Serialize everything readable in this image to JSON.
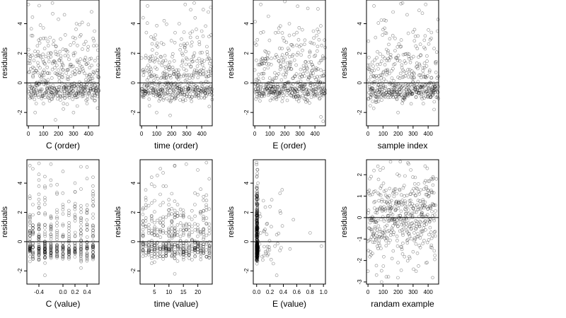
{
  "chart_data": [
    {
      "type": "scatter",
      "xlabel": "C (order)",
      "ylabel": "residuals",
      "xlim": [
        -10,
        470
      ],
      "ylim": [
        -2.9,
        5.6
      ],
      "xticks": [
        0,
        100,
        200,
        300,
        400
      ],
      "yticks": [
        -2,
        0,
        2,
        4
      ],
      "hline": 0,
      "n": 470,
      "x_pattern": "index",
      "series": [
        {
          "name": "",
          "points": [
            [
              0,
              5.3
            ],
            [
              20,
              3.2
            ],
            [
              45,
              -2.0
            ],
            [
              60,
              2.5
            ],
            [
              80,
              3.9
            ],
            [
              100,
              -1.4
            ],
            [
              130,
              2.8
            ],
            [
              160,
              5.4
            ],
            [
              180,
              -2.5
            ],
            [
              200,
              4.3
            ],
            [
              240,
              4.6
            ],
            [
              260,
              2.1
            ],
            [
              300,
              -2.0
            ],
            [
              320,
              4.0
            ],
            [
              370,
              2.6
            ],
            [
              420,
              4.8
            ],
            [
              440,
              3.5
            ],
            [
              460,
              -1.7
            ]
          ]
        }
      ]
    },
    {
      "type": "scatter",
      "xlabel": "time (order)",
      "ylabel": "residuals",
      "xlim": [
        -10,
        470
      ],
      "ylim": [
        -2.9,
        5.6
      ],
      "xticks": [
        0,
        100,
        200,
        300,
        400
      ],
      "yticks": [
        -2,
        0,
        2,
        4
      ],
      "hline": 0,
      "n": 470,
      "x_pattern": "index",
      "series": [
        {
          "name": "",
          "points": [
            [
              10,
              4.4
            ],
            [
              40,
              5.2
            ],
            [
              80,
              3.0
            ],
            [
              100,
              -2.0
            ],
            [
              150,
              4.2
            ],
            [
              190,
              -2.2
            ],
            [
              250,
              4.0
            ],
            [
              290,
              5.3
            ],
            [
              330,
              2.5
            ],
            [
              350,
              5.4
            ],
            [
              400,
              3.5
            ],
            [
              450,
              -1.6
            ],
            [
              460,
              5.1
            ]
          ]
        }
      ]
    },
    {
      "type": "scatter",
      "xlabel": "E (order)",
      "ylabel": "residuals",
      "xlim": [
        -10,
        470
      ],
      "ylim": [
        -2.9,
        5.6
      ],
      "xticks": [
        0,
        100,
        200,
        300,
        400
      ],
      "yticks": [
        -2,
        0,
        2,
        4
      ],
      "hline": 0,
      "n": 470,
      "x_pattern": "index",
      "series": [
        {
          "name": "",
          "points": [
            [
              40,
              5.3
            ],
            [
              90,
              4.5
            ],
            [
              160,
              3.7
            ],
            [
              200,
              5.5
            ],
            [
              230,
              4.0
            ],
            [
              280,
              3.4
            ],
            [
              330,
              2.6
            ],
            [
              390,
              3.5
            ],
            [
              420,
              5.0
            ],
            [
              440,
              -2.3
            ],
            [
              455,
              -2.6
            ]
          ]
        }
      ]
    },
    {
      "type": "scatter",
      "xlabel": "sample index",
      "ylabel": "residuals",
      "xlim": [
        -10,
        470
      ],
      "ylim": [
        -2.9,
        5.6
      ],
      "xticks": [
        0,
        100,
        200,
        300,
        400
      ],
      "yticks": [
        -2,
        0,
        2,
        4
      ],
      "hline": 0,
      "n": 470,
      "x_pattern": "index",
      "series": [
        {
          "name": "",
          "points": [
            [
              40,
              5.2
            ],
            [
              100,
              3.6
            ],
            [
              120,
              4.2
            ],
            [
              180,
              3.0
            ],
            [
              200,
              -2.0
            ],
            [
              230,
              5.4
            ],
            [
              260,
              4.6
            ],
            [
              310,
              3.6
            ],
            [
              340,
              4.9
            ],
            [
              380,
              2.3
            ],
            [
              420,
              3.0
            ],
            [
              440,
              -1.8
            ]
          ]
        }
      ]
    },
    {
      "type": "scatter",
      "xlabel": "C (value)",
      "ylabel": "residuals",
      "xlim": [
        -0.6,
        0.6
      ],
      "ylim": [
        -2.9,
        5.6
      ],
      "xticks": [
        -0.4,
        0.0,
        0.2,
        0.4
      ],
      "xtick_labels": [
        "-0.4",
        "0.0",
        "0.2",
        "0.4"
      ],
      "yticks": [
        -2,
        0,
        2,
        4
      ],
      "hline": 0,
      "n": 470,
      "x_pattern": "discrete",
      "x_levels": [
        -0.55,
        -0.5,
        -0.4,
        -0.3,
        -0.2,
        -0.1,
        0.0,
        0.1,
        0.2,
        0.3,
        0.4,
        0.5
      ],
      "series": [
        {
          "name": "",
          "points": [
            [
              -0.55,
              5.2
            ],
            [
              -0.4,
              4.6
            ],
            [
              -0.2,
              5.3
            ],
            [
              0.0,
              4.8
            ],
            [
              0.2,
              4.0
            ],
            [
              0.4,
              5.1
            ],
            [
              0.5,
              4.4
            ],
            [
              -0.3,
              -2.3
            ],
            [
              0.3,
              -1.8
            ]
          ]
        }
      ]
    },
    {
      "type": "scatter",
      "xlabel": "time (value)",
      "ylabel": "residuals",
      "xlim": [
        0,
        25
      ],
      "ylim": [
        -2.9,
        5.6
      ],
      "xticks": [
        5,
        10,
        15,
        20
      ],
      "yticks": [
        -2,
        0,
        2,
        4
      ],
      "hline": 0,
      "n": 470,
      "x_pattern": "discrete",
      "x_levels": [
        1,
        2,
        3,
        4,
        5,
        6,
        7,
        8,
        9,
        10,
        11,
        12,
        13,
        14,
        15,
        16,
        17,
        18,
        19,
        20,
        21,
        22,
        23,
        24
      ],
      "series": [
        {
          "name": "",
          "points": [
            [
              4,
              4.4
            ],
            [
              8,
              4.7
            ],
            [
              12,
              5.2
            ],
            [
              16,
              5.3
            ],
            [
              20,
              4.9
            ],
            [
              23,
              5.4
            ],
            [
              12,
              -2.2
            ],
            [
              5,
              -1.4
            ]
          ]
        }
      ]
    },
    {
      "type": "scatter",
      "xlabel": "E (value)",
      "ylabel": "residuals",
      "xlim": [
        -0.05,
        1.03
      ],
      "ylim": [
        -2.9,
        5.6
      ],
      "xticks": [
        0.0,
        0.2,
        0.4,
        0.6,
        0.8,
        1.0
      ],
      "xtick_labels": [
        "0.0",
        "0.2",
        "0.4",
        "0.6",
        "0.8",
        "1.0"
      ],
      "yticks": [
        -2,
        0,
        2,
        4
      ],
      "hline": 0,
      "n": 470,
      "x_pattern": "skewed",
      "series": [
        {
          "name": "",
          "points": [
            [
              0.0,
              5.4
            ],
            [
              0.02,
              4.0
            ],
            [
              0.1,
              2.8
            ],
            [
              0.2,
              2.4
            ],
            [
              0.3,
              -2.3
            ],
            [
              0.35,
              3.3
            ],
            [
              0.5,
              -0.5
            ],
            [
              0.55,
              1.5
            ],
            [
              0.8,
              0.6
            ],
            [
              0.97,
              -0.3
            ],
            [
              0.15,
              1.2
            ],
            [
              0.25,
              -1.5
            ]
          ]
        }
      ]
    },
    {
      "type": "scatter",
      "xlabel": "randam example",
      "ylabel": "residuals",
      "xlim": [
        -10,
        470
      ],
      "ylim": [
        -3.1,
        2.7
      ],
      "xticks": [
        0,
        100,
        200,
        300,
        400
      ],
      "yticks": [
        -3,
        -2,
        -1,
        0,
        1,
        2
      ],
      "hline": 0,
      "n": 450,
      "x_pattern": "index",
      "series": [
        {
          "name": "",
          "points": [
            [
              0,
              -2.5
            ],
            [
              40,
              2.2
            ],
            [
              90,
              -3.0
            ],
            [
              150,
              2.6
            ],
            [
              200,
              -2.1
            ],
            [
              270,
              2.5
            ],
            [
              320,
              -2.5
            ],
            [
              380,
              2.4
            ],
            [
              430,
              -2.8
            ],
            [
              455,
              1.8
            ]
          ]
        }
      ]
    }
  ]
}
